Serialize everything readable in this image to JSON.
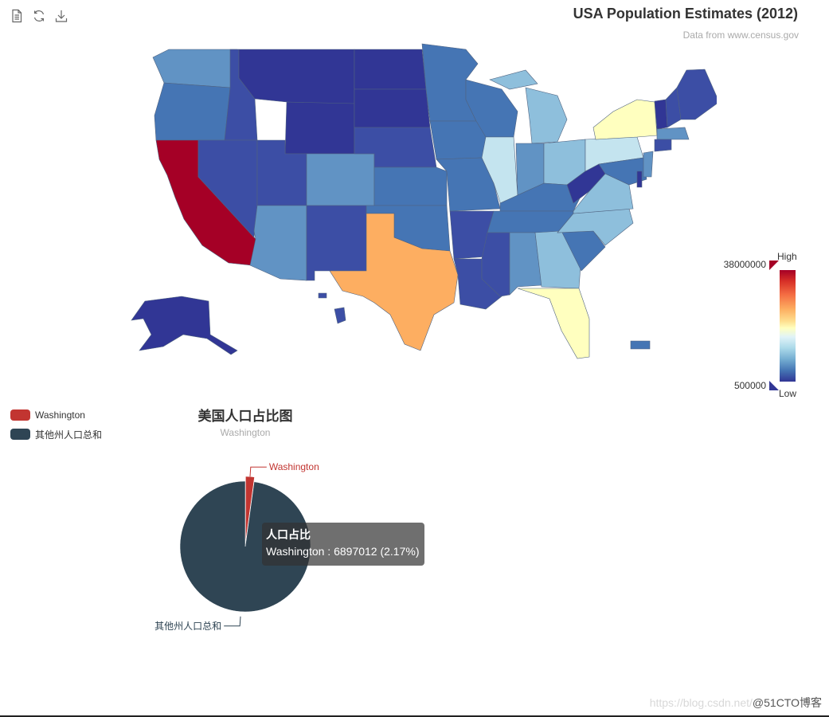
{
  "toolbox": {
    "items": [
      {
        "name": "data-view-icon"
      },
      {
        "name": "restore-icon"
      },
      {
        "name": "save-image-icon"
      }
    ]
  },
  "map": {
    "title": "USA Population Estimates (2012)",
    "subtitle": "Data from www.census.gov",
    "visual_map": {
      "high_label": "High",
      "low_label": "Low",
      "max": "38000000",
      "min": "500000"
    },
    "colors": {
      "c1": "#313695",
      "c2": "#3c4ea5",
      "c3": "#4575b4",
      "c4": "#6193c4",
      "c5": "#8ebfdc",
      "c6": "#c4e4ef",
      "c7": "#ffffbf",
      "c8": "#fdae61",
      "c9": "#a50026"
    }
  },
  "pie": {
    "title": "美国人口占比图",
    "subtitle": "Washington",
    "legend": [
      {
        "label": "Washington",
        "color": "#c23531"
      },
      {
        "label": "其他州人口总和",
        "color": "#2f4554"
      }
    ],
    "labels": {
      "washington": "Washington",
      "others": "其他州人口总和"
    },
    "tooltip": {
      "title": "人口占比",
      "body": "Washington : 6897012 (2.17%)"
    }
  },
  "chart_data": {
    "type": "pie",
    "title": "美国人口占比图",
    "subtitle": "Washington",
    "categories": [
      "Washington",
      "其他州人口总和"
    ],
    "values": [
      6897012,
      310902986
    ],
    "percentages": [
      2.17,
      97.83
    ]
  },
  "watermark": {
    "faint": "https://blog.csdn.net/",
    "strong": "@51CTO博客"
  }
}
